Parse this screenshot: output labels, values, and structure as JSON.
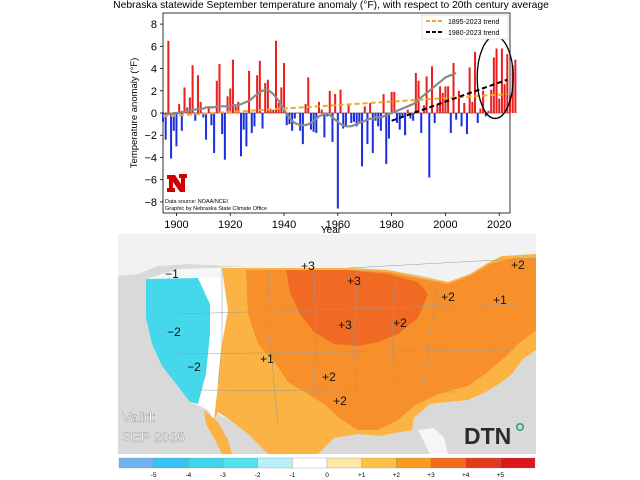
{
  "chart_data": {
    "type": "bar",
    "title": "Nebraska statewide September temperature anomaly (°F), with respect to 20th century average",
    "xlabel": "Year",
    "ylabel": "Temperature anomaly (°F)",
    "xlim": [
      1895,
      2024
    ],
    "ylim": [
      -9,
      9
    ],
    "x_ticks": [
      1900,
      1920,
      1940,
      1960,
      1980,
      2000,
      2020
    ],
    "y_ticks": [
      8,
      6,
      4,
      2,
      0,
      -2,
      -4,
      -6,
      -8
    ],
    "source_note_1": "Data source: NOAA/NCEI",
    "source_note_2": "Graphic by Nebraska State Climate Office",
    "legend": [
      {
        "label": "1895-2023 trend",
        "color": "#f5a623",
        "style": "dashed"
      },
      {
        "label": "1980-2023 trend",
        "color": "#000000",
        "style": "dashed"
      }
    ],
    "legend_position": "top-right",
    "start_year": 1895,
    "anomalies": [
      -0.8,
      -2.4,
      6.5,
      -4.1,
      -1.6,
      -3.0,
      0.8,
      -1.6,
      2.3,
      0.5,
      1.4,
      4.3,
      -0.7,
      3.4,
      1.0,
      -0.4,
      -2.4,
      0.6,
      -1.1,
      -3.6,
      2.9,
      4.4,
      -1.9,
      -4.2,
      1.5,
      2.2,
      4.8,
      0.6,
      1.0,
      -3.9,
      -1.5,
      -3.0,
      3.8,
      -1.8,
      -1.2,
      3.4,
      4.7,
      -1.4,
      2.7,
      3.0,
      0.4,
      0.3,
      6.5,
      0.9,
      2.3,
      4.5,
      -1.1,
      -1.0,
      -1.6,
      -0.5,
      0.0,
      -1.6,
      -2.8,
      0.8,
      3.2,
      -1.5,
      -1.7,
      -1.8,
      1.0,
      0.3,
      -2.2,
      -0.3,
      2.0,
      -2.6,
      1.7,
      -8.6,
      2.1,
      -1.4,
      -1.2,
      0.7,
      -0.9,
      -0.8,
      -1.2,
      -0.8,
      -4.8,
      0.6,
      -2.8,
      0.9,
      -3.6,
      -0.7,
      -1.2,
      -1.6,
      1.7,
      -4.6,
      -2.3,
      1.9,
      1.9,
      -0.9,
      -1.5,
      -0.3,
      -2.0,
      0.3,
      -0.5,
      -0.7,
      3.6,
      2.9,
      -1.8,
      0.7,
      3.3,
      -5.8,
      4.2,
      -0.9,
      0.8,
      2.4,
      1.8,
      2.4,
      2.4,
      -1.8,
      4.5,
      -0.6,
      2.0,
      -1.2,
      0.9,
      -1.9,
      4.1,
      1.0,
      5.5,
      -0.9,
      0.4,
      2.0,
      -0.3,
      0.2,
      2.1,
      5.0,
      5.8,
      1.3,
      5.8,
      2.6,
      5.3,
      1.6,
      4.3,
      4.8
    ],
    "smoothed": [
      -0.2,
      -0.2,
      -0.1,
      -0.1,
      0.0,
      0.0,
      0.0,
      0.1,
      0.1,
      0.2,
      0.2,
      0.3,
      0.3,
      0.4,
      0.4,
      0.4,
      0.5,
      0.5,
      0.5,
      0.5,
      0.6,
      0.6,
      0.6,
      0.6,
      0.6,
      0.6,
      0.7,
      0.7,
      0.7,
      0.8,
      0.9,
      1.0,
      1.1,
      1.3,
      1.5,
      1.7,
      1.9,
      2.0,
      2.1,
      2.1,
      1.9,
      1.7,
      1.4,
      1.1,
      0.7,
      0.3,
      -0.1,
      -0.4,
      -0.7,
      -0.9,
      -1.0,
      -1.1,
      -1.1,
      -1.1,
      -1.0,
      -0.9,
      -0.7,
      -0.5,
      -0.3,
      -0.2,
      -0.1,
      -0.1,
      -0.2,
      -0.4,
      -0.6,
      -0.8,
      -1.0,
      -1.1,
      -1.2,
      -1.2,
      -1.2,
      -1.1,
      -1.0,
      -0.9,
      -0.8,
      -0.7,
      -0.6,
      -0.5,
      -0.5,
      -0.4,
      -0.4,
      -0.4,
      -0.3,
      -0.2,
      -0.1,
      0.0,
      0.1,
      0.2,
      0.3,
      0.4,
      0.5,
      0.6,
      0.7,
      0.8,
      1.0,
      1.2,
      1.4,
      1.6,
      1.8,
      2.0,
      2.2,
      2.4,
      2.6,
      2.8,
      3.0,
      3.2,
      3.3,
      3.4,
      3.5,
      3.6
    ],
    "trend_1895_2023": {
      "x": [
        1895,
        2023
      ],
      "y": [
        -0.3,
        1.7
      ]
    },
    "trend_1980_2023": {
      "x": [
        1980,
        2023
      ],
      "y": [
        -0.7,
        3.0
      ]
    },
    "annotation": "ellipse around 2013-2023"
  },
  "map": {
    "valid_label": "Valid:",
    "valid_date": "SEP 2025",
    "logo": "DTN",
    "labels": [
      {
        "text": "−1",
        "region": "Pacific Northwest"
      },
      {
        "text": "−2",
        "region": "Northern California"
      },
      {
        "text": "−2",
        "region": "Southern California"
      },
      {
        "text": "+1",
        "region": "Southwest"
      },
      {
        "text": "+3",
        "region": "Northern Plains"
      },
      {
        "text": "+3",
        "region": "Upper Midwest"
      },
      {
        "text": "+3",
        "region": "Central Plains"
      },
      {
        "text": "+2",
        "region": "Mid-Mississippi Valley"
      },
      {
        "text": "+2",
        "region": "Southern Plains"
      },
      {
        "text": "+2",
        "region": "Texas"
      },
      {
        "text": "+2",
        "region": "Ohio Valley"
      },
      {
        "text": "+1",
        "region": "Mid-Atlantic"
      },
      {
        "text": "+2",
        "region": "Northeast"
      }
    ]
  },
  "colorbar": {
    "ticks": [
      "-5",
      "-4",
      "-3",
      "-2",
      "-1",
      "0",
      "+1",
      "+2",
      "+3",
      "+4",
      "+5"
    ],
    "colors": [
      "#6fb4f0",
      "#37c2f5",
      "#3fd5ea",
      "#52e3ee",
      "#b7f0f6",
      "#ffffff",
      "#fde7a6",
      "#fcc247",
      "#fb9b1b",
      "#f26a1b",
      "#e43a1c",
      "#d7191c"
    ]
  }
}
